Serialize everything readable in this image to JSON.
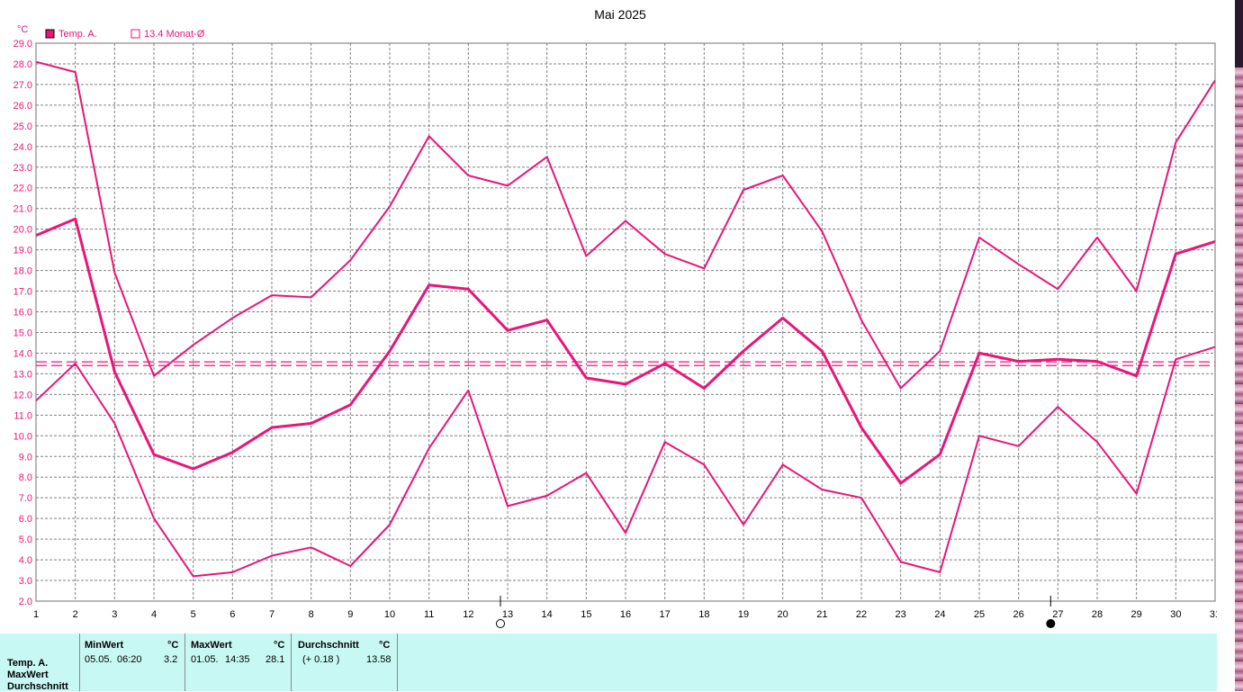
{
  "chart_data": {
    "type": "line",
    "title": "Mai 2025",
    "ylabel": "°C",
    "ylim": [
      2.0,
      29.0
    ],
    "xlim": [
      1,
      31
    ],
    "grid": true,
    "x": [
      1,
      2,
      3,
      4,
      5,
      6,
      7,
      8,
      9,
      10,
      11,
      12,
      13,
      14,
      15,
      16,
      17,
      18,
      19,
      20,
      21,
      22,
      23,
      24,
      25,
      26,
      27,
      28,
      29,
      30,
      31
    ],
    "series": [
      {
        "name": "Temp. A.",
        "role": "max",
        "color": "#e8157a",
        "values": [
          28.1,
          27.6,
          17.9,
          12.9,
          14.4,
          15.7,
          16.8,
          16.7,
          18.5,
          21.1,
          24.5,
          22.6,
          22.1,
          23.5,
          18.7,
          20.4,
          18.8,
          18.1,
          21.9,
          22.6,
          19.9,
          15.6,
          12.3,
          14.1,
          19.6,
          18.3,
          17.1,
          19.6,
          17.0,
          24.2,
          27.2
        ]
      },
      {
        "name": "Temp. A.",
        "role": "mean",
        "color": "#e8157a",
        "values": [
          19.7,
          20.5,
          13.1,
          9.1,
          8.4,
          9.2,
          10.4,
          10.6,
          11.5,
          14.1,
          17.3,
          17.1,
          15.1,
          15.6,
          12.8,
          12.5,
          13.5,
          12.3,
          14.1,
          15.7,
          14.1,
          10.4,
          7.7,
          9.1,
          14.0,
          13.6,
          13.7,
          13.6,
          12.9,
          18.8,
          19.4
        ]
      },
      {
        "name": "Temp. A.",
        "role": "min",
        "color": "#e8157a",
        "values": [
          11.7,
          13.5,
          10.6,
          6.0,
          3.2,
          3.4,
          4.2,
          4.6,
          3.7,
          5.7,
          9.4,
          12.2,
          6.6,
          7.1,
          8.2,
          5.3,
          9.7,
          8.6,
          5.7,
          8.6,
          7.4,
          7.0,
          3.9,
          3.4,
          10.0,
          9.5,
          11.4,
          9.7,
          7.2,
          13.7,
          14.3
        ]
      }
    ],
    "reference_lines": [
      {
        "label": "13.4 Monat-Ø",
        "values": [
          13.4,
          13.58
        ],
        "style": "dashed"
      }
    ],
    "legend": {
      "placement": "top-left",
      "items": [
        {
          "label": "Temp. A.",
          "marker": "filled-square",
          "color": "#e8157a"
        },
        {
          "label": "13.4 Monat-Ø",
          "marker": "open-square",
          "color": "#e8157a"
        }
      ]
    },
    "moon_phases": [
      {
        "day": 13,
        "phase": "full-moon"
      },
      {
        "day": 27,
        "phase": "new-moon"
      }
    ]
  },
  "stats": {
    "row_labels": [
      "Temp. A.",
      "MaxWert",
      "Durchschnitt"
    ],
    "min": {
      "header": "MinWert",
      "unit": "°C",
      "date": "05.05.",
      "time": "06:20",
      "value": "3.2"
    },
    "max": {
      "header": "MaxWert",
      "unit": "°C",
      "date": "01.05.",
      "time": "14:35",
      "value": "28.1"
    },
    "avg": {
      "header": "Durchschnitt",
      "unit": "°C",
      "delta": "(+ 0.18 )",
      "value": "13.58"
    }
  }
}
